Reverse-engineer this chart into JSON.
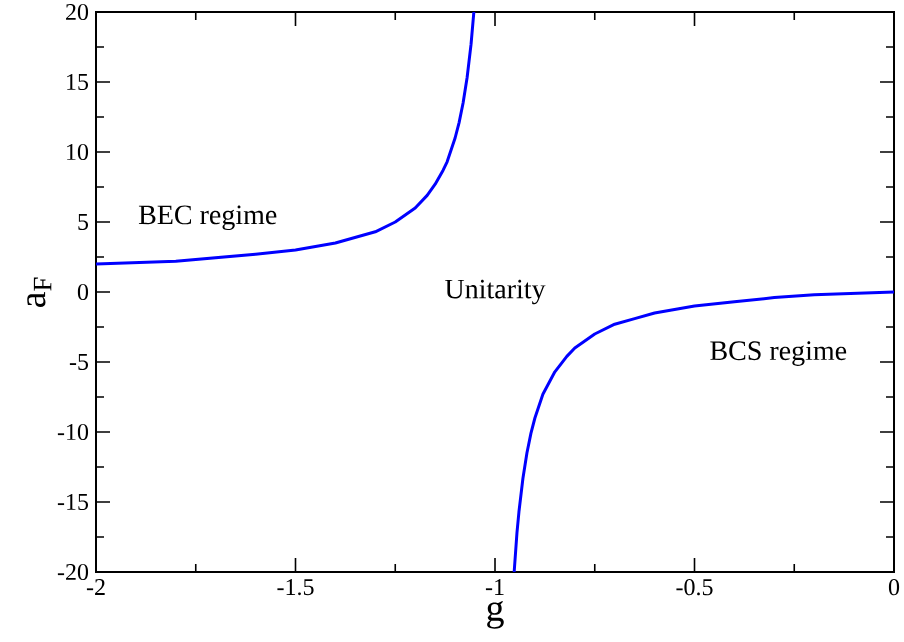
{
  "chart_data": {
    "type": "line",
    "xlabel": "g",
    "ylabel": "a$_{F}$",
    "annotations": [
      "BEC regime",
      "Unitarity",
      "BCS regime"
    ],
    "series": [
      {
        "color": "#0000ff",
        "x": [
          -2,
          -1.8,
          -1.6,
          -1.5,
          -1.4,
          -1.3,
          -1.25,
          -1.2,
          -1.17,
          -1.15,
          -1.13,
          -1.12,
          -1.1,
          -1.09,
          -1.08,
          -1.07,
          -1.06,
          -1.053
        ],
        "values": [
          2,
          2.2,
          2.7,
          3,
          3.5,
          4.3,
          5,
          6,
          6.9,
          7.7,
          8.7,
          9.3,
          11,
          12.1,
          13.5,
          15.3,
          17.7,
          20
        ]
      },
      {
        "color": "#0000ff",
        "x": [
          -0.952,
          -0.945,
          -0.94,
          -0.93,
          -0.92,
          -0.91,
          -0.9,
          -0.88,
          -0.85,
          -0.82,
          -0.8,
          -0.75,
          -0.7,
          -0.65,
          -0.6,
          -0.5,
          -0.4,
          -0.3,
          -0.2,
          -0.1,
          0
        ],
        "values": [
          -20,
          -17.2,
          -15.7,
          -13.3,
          -11.5,
          -10.1,
          -9,
          -7.3,
          -5.7,
          -4.6,
          -4,
          -3,
          -2.3,
          -1.9,
          -1.5,
          -1,
          -0.7,
          -0.4,
          -0.2,
          -0.1,
          0
        ]
      }
    ],
    "xlim": [
      -2,
      0
    ],
    "xticks": [
      -2,
      -1.5,
      -1,
      -0.5,
      0
    ],
    "ylim": [
      -20,
      20
    ],
    "yticks": [
      -20,
      -15,
      -10,
      -5,
      0,
      5,
      10,
      15,
      20
    ],
    "grid": false,
    "marker": "none",
    "line_style": "solid"
  }
}
